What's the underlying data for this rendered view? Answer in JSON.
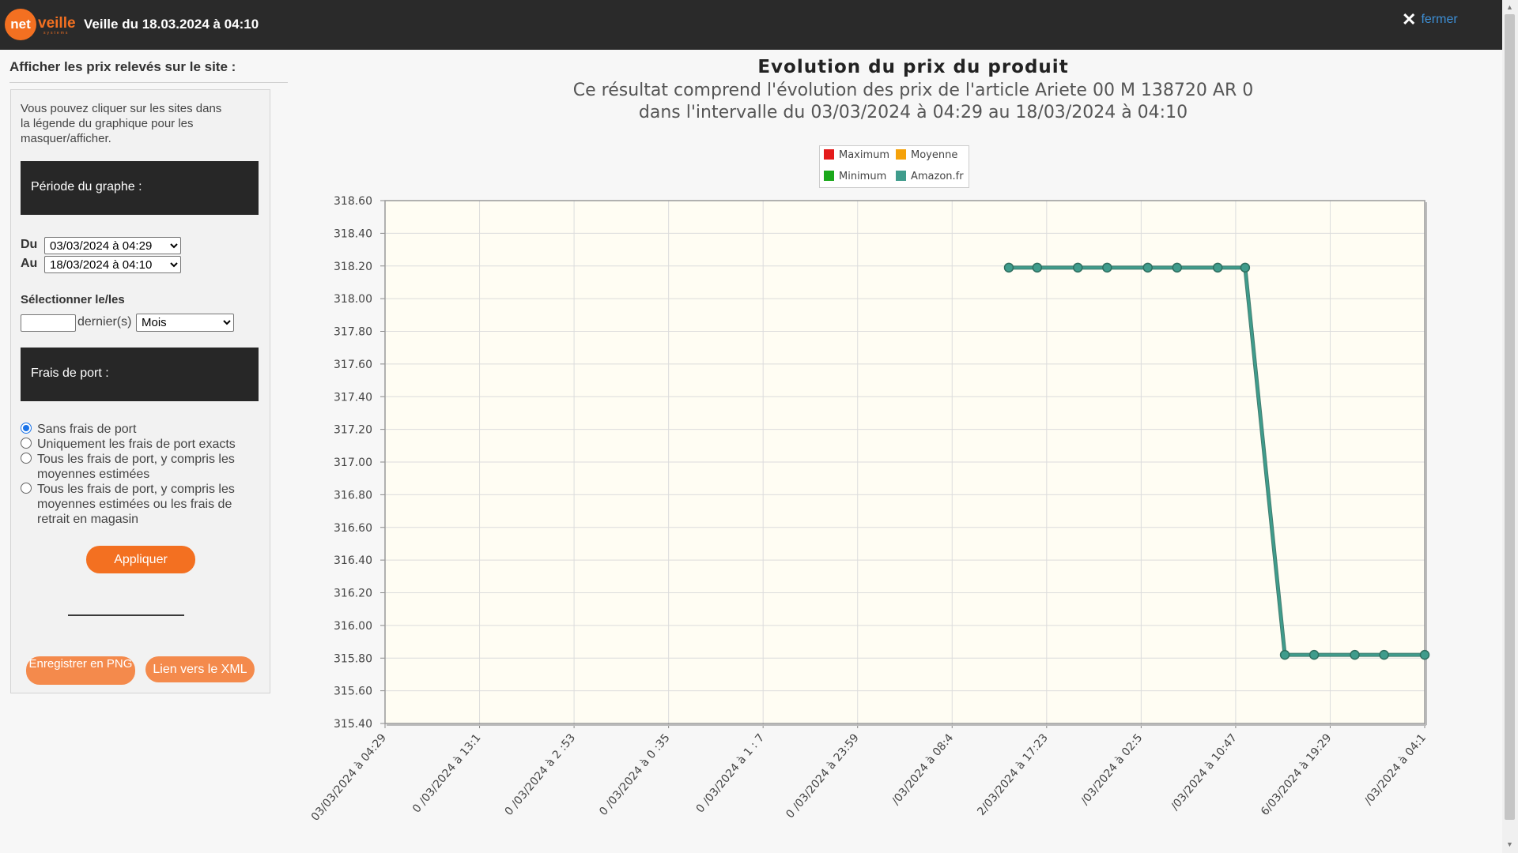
{
  "header": {
    "logo_text": "net",
    "logo_word": "veille",
    "logo_sub": "systems",
    "title": "Veille du 18.03.2024 à 04:10",
    "close_label": "fermer"
  },
  "sidebar": {
    "title": "Afficher les prix relevés sur le site :",
    "hint": "Vous pouvez cliquer sur les sites dans la légende du graphique pour les masquer/afficher.",
    "period_label": "Période du graphe :",
    "du_label": "Du",
    "du_value": "03/03/2024 à 04:29",
    "au_label": "Au",
    "au_value": "18/03/2024 à 04:10",
    "select_label": "Sélectionner le/les",
    "last_n_value": "",
    "dernier_label": "dernier(s)",
    "unit_value": "Mois",
    "shipping_label": "Frais de port :",
    "radio_options": [
      {
        "label": "Sans frais de port",
        "checked": true
      },
      {
        "label": "Uniquement les frais de port exacts",
        "checked": false
      },
      {
        "label": "Tous les frais de port, y compris les moyennes estimées",
        "checked": false
      },
      {
        "label": "Tous les frais de port, y compris les moyennes estimées ou les frais de retrait en magasin",
        "checked": false
      }
    ],
    "apply_label": "Appliquer",
    "save_png_label": "Enregistrer en PNG",
    "xml_link_label": "Lien vers le XML"
  },
  "chart_data": {
    "type": "line",
    "title": "Evolution du prix du produit",
    "subtitle_1": "Ce résultat comprend l'évolution des prix de l'article Ariete 00 M 138720 AR 0",
    "subtitle_2": "dans l'intervalle du 03/03/2024 à 04:29 au 18/03/2024 à 04:10",
    "ylim": [
      315.4,
      318.6
    ],
    "y_ticks": [
      "318.60",
      "318.40",
      "318.20",
      "318.00",
      "317.80",
      "317.60",
      "317.40",
      "317.20",
      "317.00",
      "316.80",
      "316.60",
      "316.40",
      "316.20",
      "316.00",
      "315.80",
      "315.60",
      "315.40"
    ],
    "x_tick_labels": [
      "03/03/2024 à 04:29",
      "0 /03/2024 à 13:1",
      "0 /03/2024 à 2 :53",
      "0 /03/2024 à 0 :35",
      "0 /03/2024 à 1 : 7",
      "0 /03/2024 à 23:59",
      "/03/2024 à 08:4",
      "2/03/2024 à 17:23",
      "/03/2024 à 02:5",
      "/03/2024 à 10:47",
      "6/03/2024 à 19:29",
      "/03/2024 à 04:1"
    ],
    "grid": true,
    "legend_position": "top-center",
    "legend": [
      {
        "name": "Maximum",
        "color": "#e41b1b"
      },
      {
        "name": "Moyenne",
        "color": "#f5a20a"
      },
      {
        "name": "Minimum",
        "color": "#1aa81a"
      },
      {
        "name": "Amazon.fr",
        "color": "#3f9c8c"
      }
    ],
    "series": [
      {
        "name": "Amazon.fr",
        "color": "#3f9c8c",
        "x_index": [
          6.6,
          6.9,
          7.33,
          7.64,
          8.07,
          8.38,
          8.81,
          9.1,
          9.52,
          9.83,
          10.26,
          10.57,
          11.0
        ],
        "values": [
          318.19,
          318.19,
          318.19,
          318.19,
          318.19,
          318.19,
          318.19,
          318.19,
          315.82,
          315.82,
          315.82,
          315.82,
          315.82
        ]
      }
    ]
  }
}
